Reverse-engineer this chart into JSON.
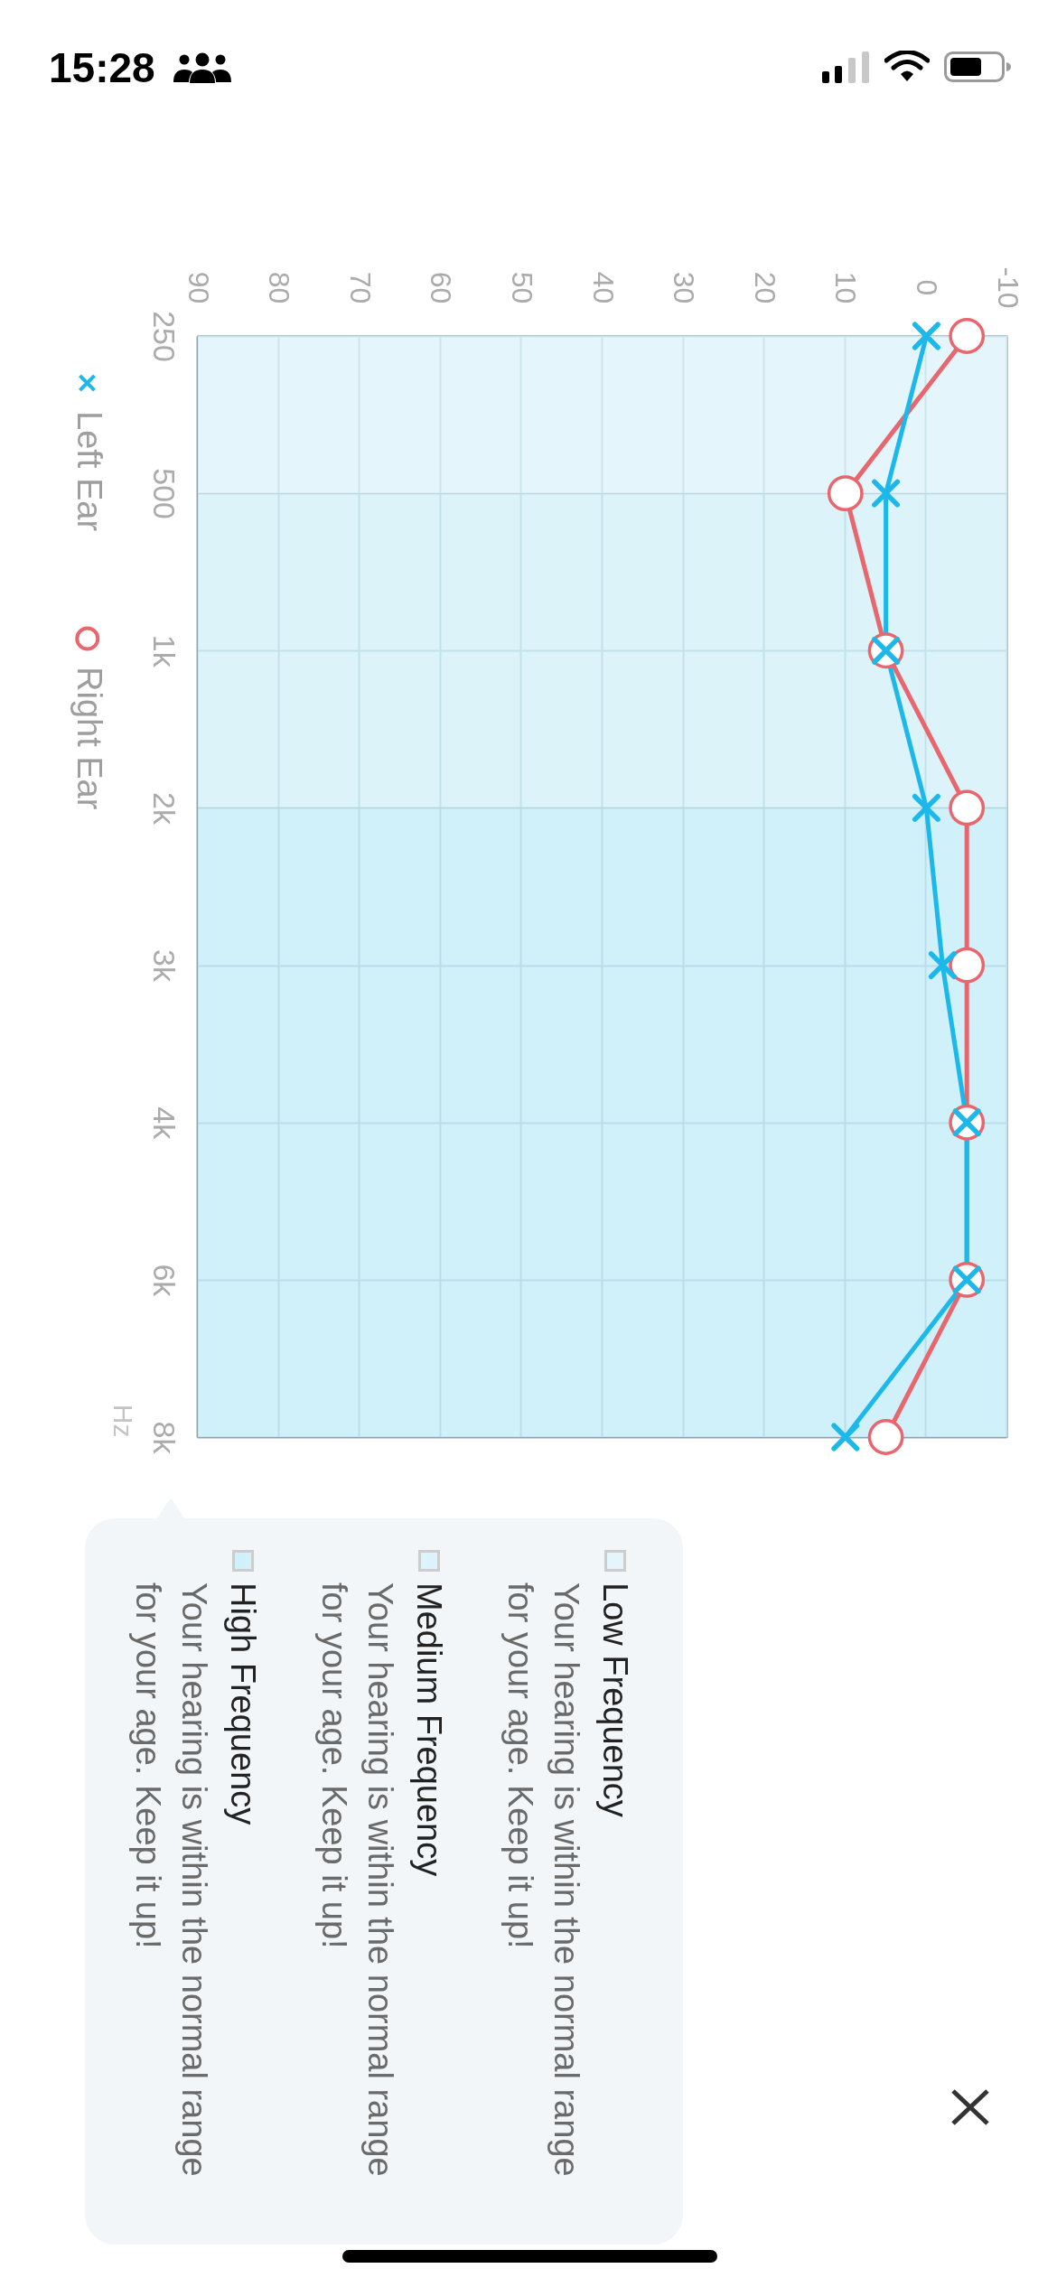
{
  "chart_data": {
    "type": "line",
    "orientation": "horizontal",
    "ylabel": "Hz",
    "categories": [
      "250",
      "500",
      "1k",
      "2k",
      "3k",
      "4k",
      "6k",
      "8k"
    ],
    "series": [
      {
        "name": "Left Ear",
        "color": "#1cb8ea",
        "marker": "cross",
        "values": [
          0,
          5,
          5,
          0,
          -2,
          -5,
          -5,
          10
        ]
      },
      {
        "name": "Right Ear",
        "color": "#e8666e",
        "marker": "circle",
        "values": [
          -5,
          10,
          5,
          -5,
          -5,
          -5,
          -5,
          5
        ]
      }
    ],
    "xlim": [
      90,
      -10
    ],
    "xticks": [
      90,
      80,
      70,
      60,
      50,
      40,
      30,
      20,
      10,
      0,
      -10
    ],
    "grid": true,
    "legend": "left",
    "bands": [
      {
        "axis": "y",
        "from": "250",
        "to": "500",
        "label": "Low Frequency",
        "color": "#ddf4fa"
      },
      {
        "axis": "y",
        "from": "500",
        "to": "2k",
        "label": "Medium Frequency",
        "color": "#d2f0f8"
      },
      {
        "axis": "y",
        "from": "2k",
        "to": "8k",
        "label": "High Frequency",
        "color": "#c4ecf9"
      }
    ],
    "annotations": [
      "15:28",
      "Your hearing is within the normal range for your age. Keep it up!",
      "Your hearing is within the normal range for your age. Keep it up!",
      "Your hearing is within the normal range for your age. Keep it up!"
    ]
  }
}
